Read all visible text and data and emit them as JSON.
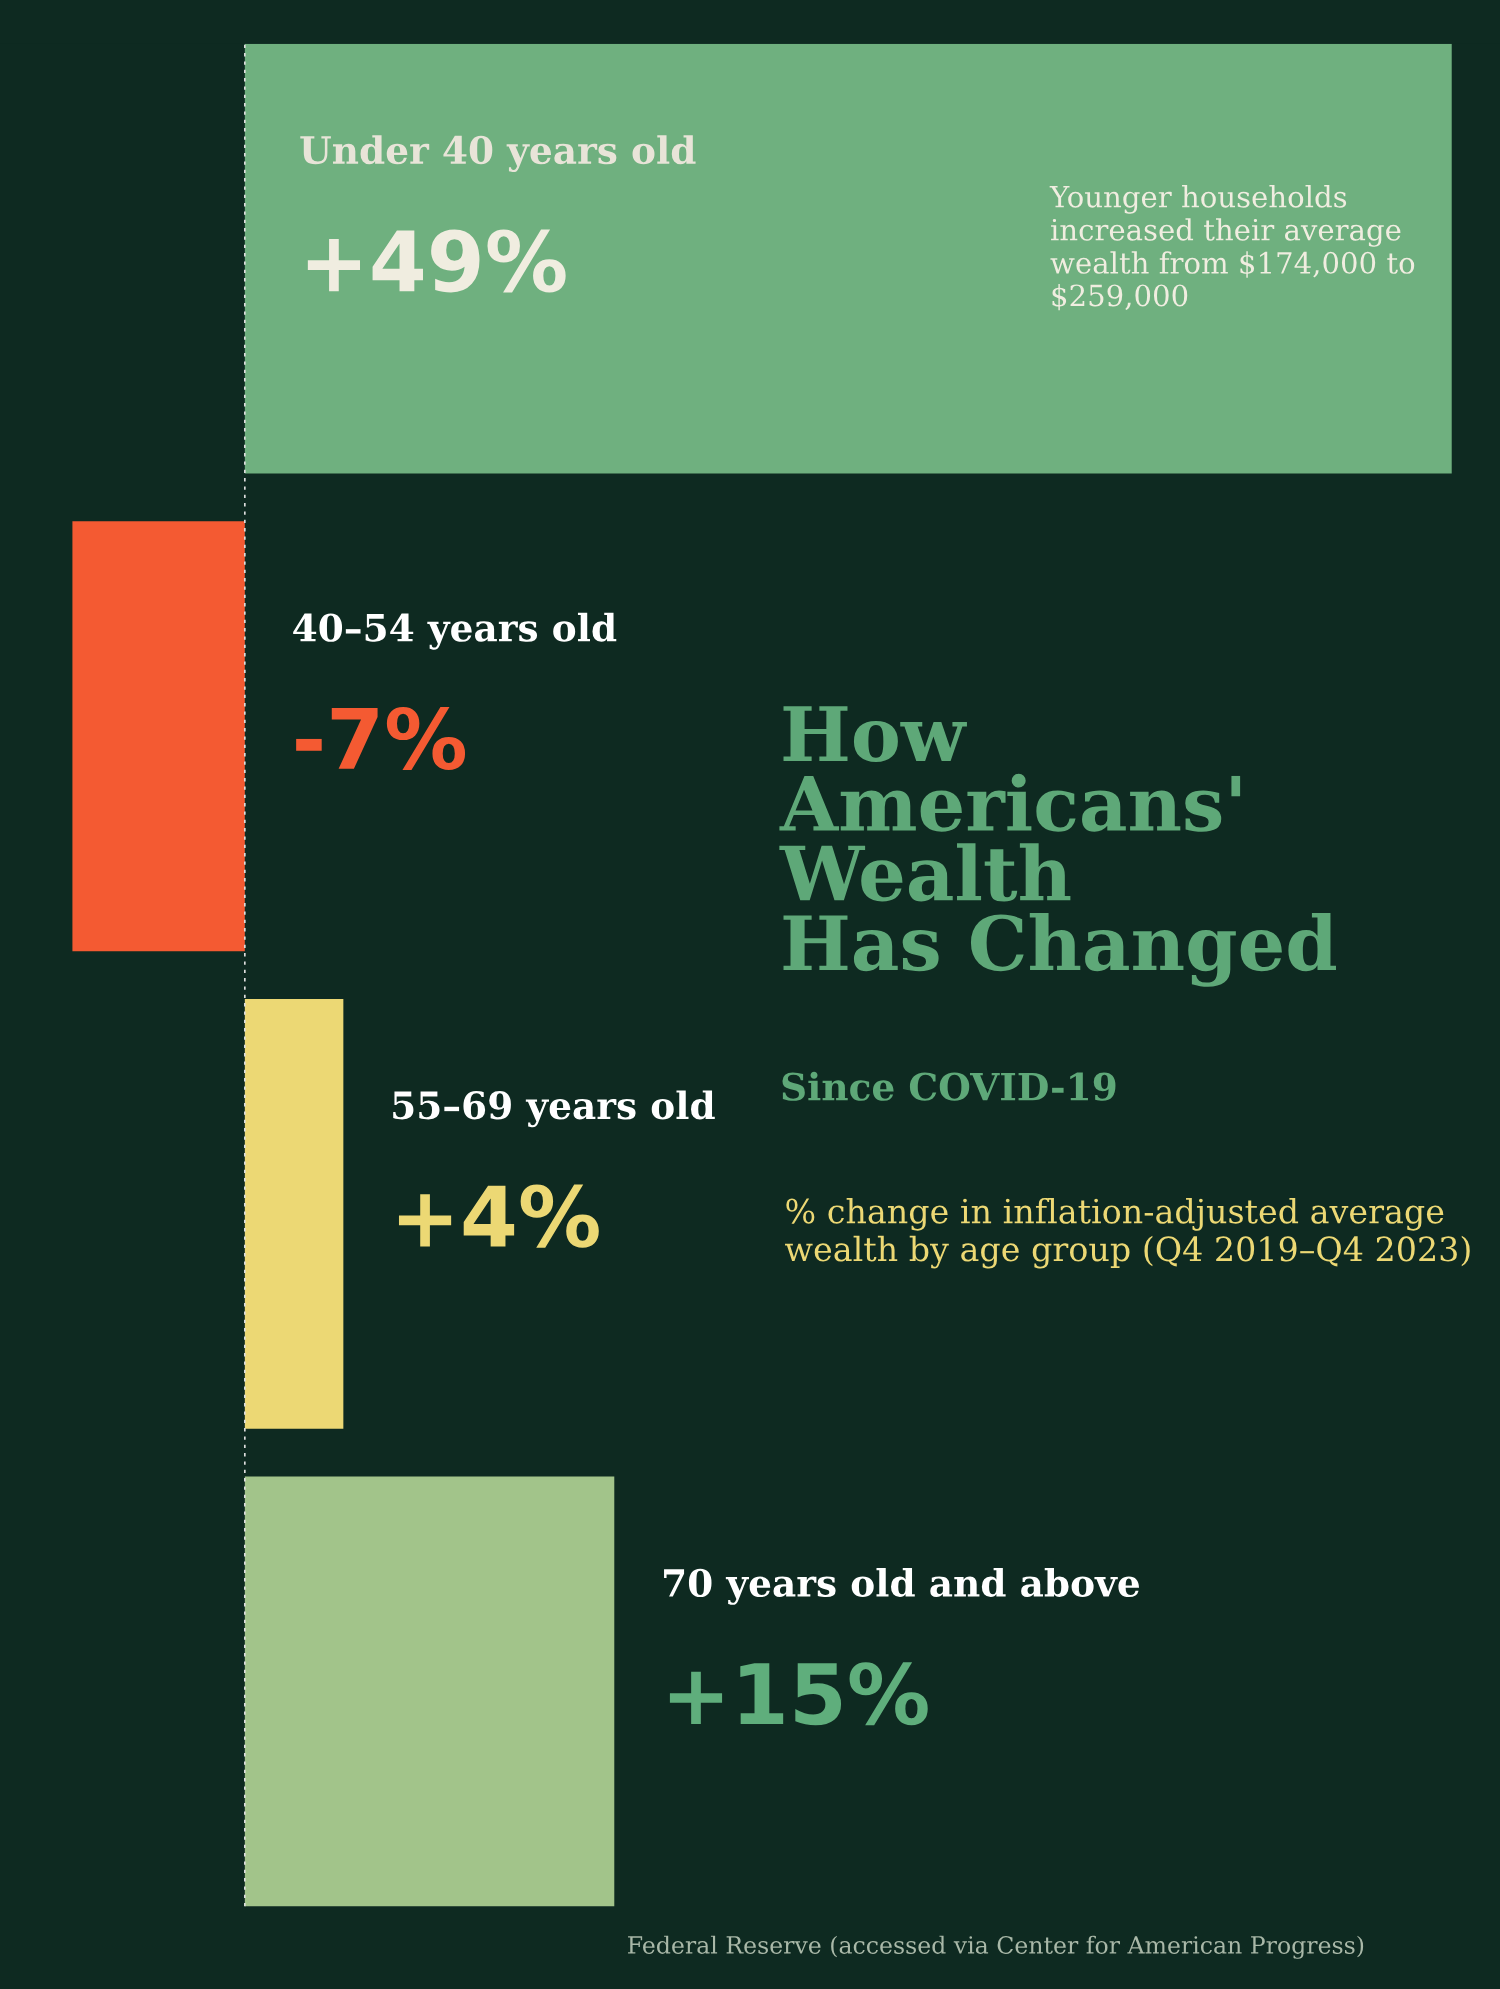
{
  "chart_data": {
    "type": "bar",
    "orientation": "horizontal",
    "title": "How Americans' Wealth Has Changed",
    "subtitle": "Since COVID-19",
    "categories": [
      "Under 40 years old",
      "40–54 years old",
      "55–69 years old",
      "70 years old and above"
    ],
    "values": [
      49,
      -7,
      4,
      15
    ],
    "value_labels": [
      "+49%",
      "-7%",
      "+4%",
      "+15%"
    ],
    "colors": [
      "#6fb07f",
      "#f45a32",
      "#ecd874",
      "#a2c48a"
    ],
    "annotations": [
      "Younger households increased their average wealth from $174,000 to $259,000",
      "% change in inflation-adjusted average wealth by age group (Q4 2019–Q4 2023)",
      "Federal Reserve (accessed via Center for American Progress)"
    ],
    "ref_lines": [
      {
        "axis": "x",
        "value": 0,
        "color": "#dddddd",
        "line_style": "dotted"
      }
    ]
  }
}
